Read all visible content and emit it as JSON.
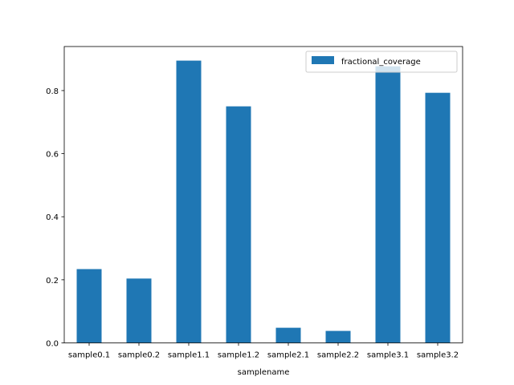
{
  "chart_data": {
    "type": "bar",
    "categories": [
      "sample0.1",
      "sample0.2",
      "sample1.1",
      "sample1.2",
      "sample2.1",
      "sample2.2",
      "sample3.1",
      "sample3.2"
    ],
    "series": [
      {
        "name": "fractional_coverage",
        "values": [
          0.234,
          0.204,
          0.895,
          0.75,
          0.048,
          0.038,
          0.877,
          0.793
        ],
        "color": "#1f77b4"
      }
    ],
    "title": "",
    "xlabel": "samplename",
    "ylabel": "",
    "ylim": [
      0,
      0.9397
    ],
    "yticks": [
      0.0,
      0.2,
      0.4,
      0.6,
      0.8
    ],
    "ytick_labels": [
      "0.0",
      "0.2",
      "0.4",
      "0.6",
      "0.8"
    ],
    "grid": false,
    "legend_position": "top-right"
  }
}
